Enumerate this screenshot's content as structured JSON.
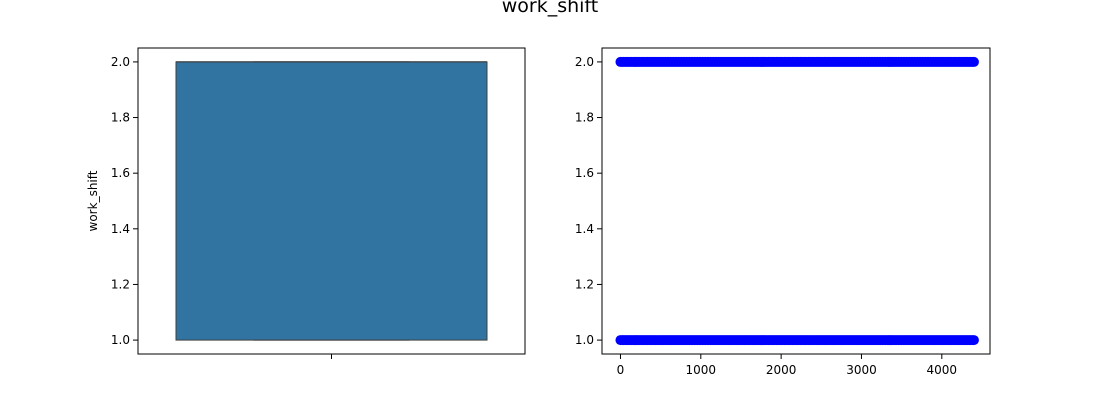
{
  "figure": {
    "suptitle": "work_shift"
  },
  "chart_data": [
    {
      "type": "box",
      "ylabel": "work_shift",
      "xlabel": "",
      "ylim": [
        0.95,
        2.05
      ],
      "yticks": [
        "1.0",
        "1.2",
        "1.4",
        "1.6",
        "1.8",
        "2.0"
      ],
      "box": {
        "min": 1.0,
        "q1": 1.0,
        "median": 2.0,
        "q3": 2.0,
        "max": 2.0
      },
      "color": "#3274a1",
      "grid": false
    },
    {
      "type": "scatter",
      "xlabel": "",
      "ylabel": "",
      "xlim": [
        -230,
        4600
      ],
      "ylim": [
        0.95,
        2.05
      ],
      "xticks": [
        "0",
        "1000",
        "2000",
        "3000",
        "4000"
      ],
      "yticks": [
        "1.0",
        "1.2",
        "1.4",
        "1.6",
        "1.8",
        "2.0"
      ],
      "y_levels": [
        1.0,
        2.0
      ],
      "x_range": [
        0,
        4400
      ],
      "marker_color": "#0000ff",
      "grid": false
    }
  ]
}
